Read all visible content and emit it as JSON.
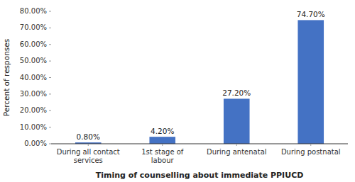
{
  "chart_data": {
    "type": "bar",
    "categories": [
      "During all contact\nservices",
      "1st stage of\nlabour",
      "During antenatal",
      "During postnatal"
    ],
    "values": [
      0.8,
      4.2,
      27.2,
      74.7
    ],
    "value_labels": [
      "0.80%",
      "4.20%",
      "27.20%",
      "74.70%"
    ],
    "data_labels": true,
    "color": "#4472C4",
    "ylabel": "Percent of responses",
    "xlabel": "Timing of counselling about immediate PPIUCD",
    "ylim": [
      0,
      80
    ],
    "yticks": [
      {
        "value": 0,
        "label": "0.00%"
      },
      {
        "value": 10,
        "label": "10.00%"
      },
      {
        "value": 20,
        "label": "20.00%"
      },
      {
        "value": 30,
        "label": "30.00%"
      },
      {
        "value": 40,
        "label": "40.00%"
      },
      {
        "value": 50,
        "label": "50.00%"
      },
      {
        "value": 60,
        "label": "60.00%"
      },
      {
        "value": 70,
        "label": "70.00%"
      },
      {
        "value": 80,
        "label": "80.00%"
      }
    ],
    "grid": false
  }
}
